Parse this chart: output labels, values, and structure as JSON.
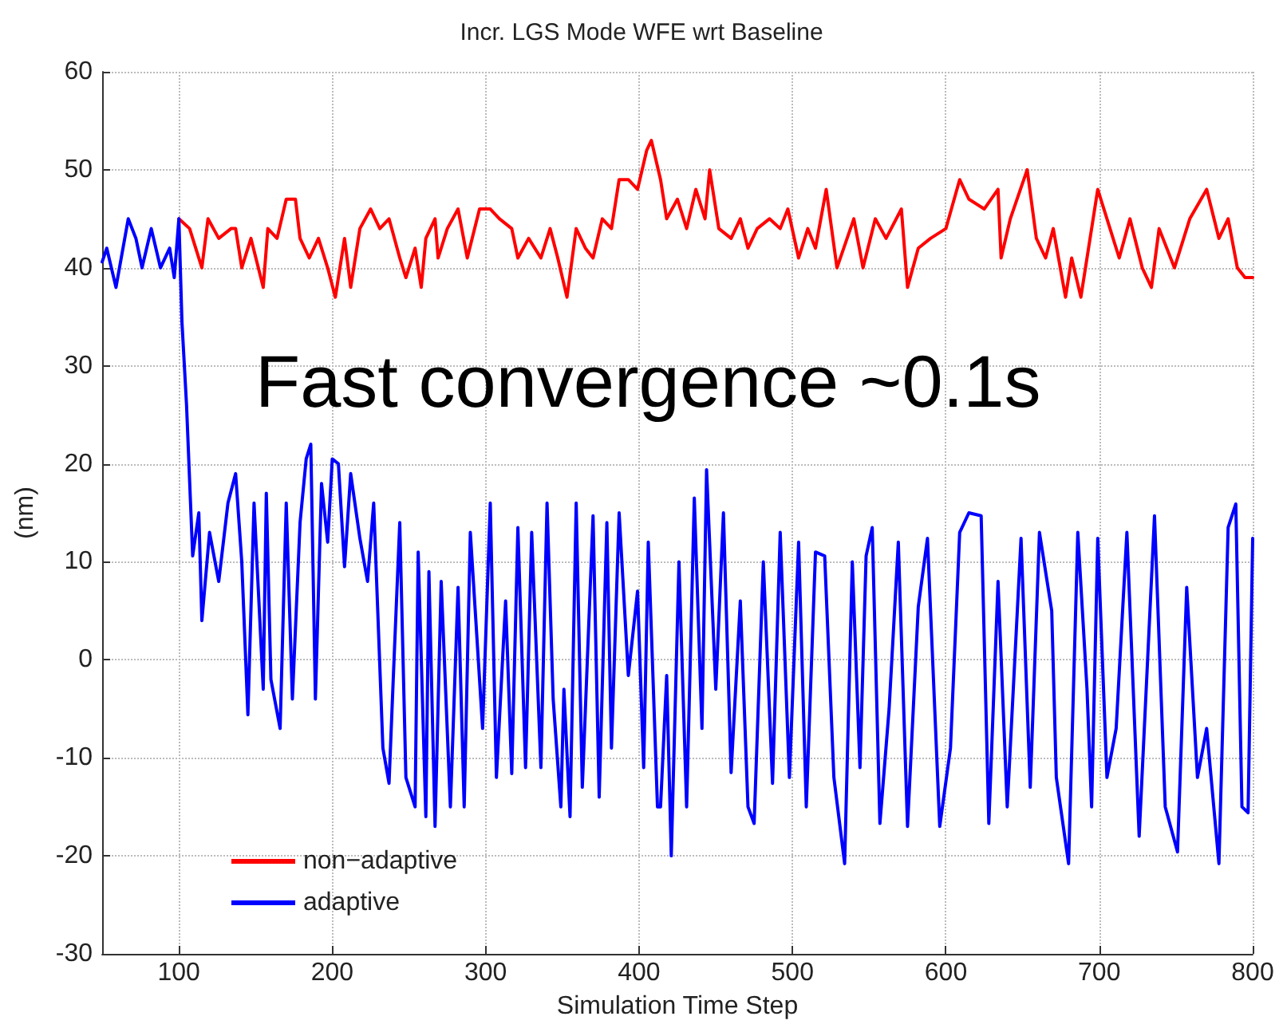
{
  "chart_data": {
    "type": "line",
    "title": "Incr. LGS Mode WFE wrt Baseline",
    "xlabel": "Simulation Time Step",
    "ylabel": "(nm)",
    "annotations": [
      "Fast convergence ~0.1s"
    ],
    "xlim": [
      50,
      800
    ],
    "xticks": [
      100,
      200,
      300,
      400,
      500,
      600,
      700,
      800
    ],
    "ylim": [
      -30,
      60
    ],
    "yticks": [
      -30,
      -20,
      -10,
      0,
      10,
      20,
      30,
      40,
      50,
      60
    ],
    "grid": true,
    "legend": "bottom left",
    "marker": "none",
    "line_style": "solid",
    "series": [
      {
        "name": "non−adaptive",
        "color": "#ff0000",
        "x": [
          100,
          107,
          115,
          119,
          126,
          134,
          137,
          141,
          147,
          155,
          158,
          164,
          170,
          176,
          179,
          185,
          191,
          197,
          202,
          208,
          212,
          218,
          225,
          231,
          237,
          244,
          248,
          254,
          258,
          261,
          267,
          269,
          275,
          282,
          288,
          296,
          303,
          309,
          317,
          321,
          328,
          336,
          342,
          347,
          353,
          359,
          365,
          370,
          376,
          382,
          387,
          393,
          399,
          405,
          408,
          414,
          418,
          425,
          431,
          437,
          443,
          446,
          452,
          460,
          466,
          471,
          477,
          485,
          492,
          497,
          504,
          510,
          515,
          522,
          529,
          540,
          546,
          554,
          561,
          571,
          575,
          582,
          590,
          600,
          609,
          615,
          625,
          634,
          636,
          642,
          653,
          659,
          665,
          670,
          678,
          682,
          688,
          699,
          707,
          713,
          720,
          728,
          734,
          739,
          749,
          759,
          770,
          778,
          784,
          790,
          795,
          800
        ],
        "values": [
          45,
          44,
          40,
          45,
          43,
          44,
          44,
          40,
          43,
          38,
          44,
          43,
          47,
          47,
          43,
          41,
          43,
          40,
          37,
          43,
          38,
          44,
          46,
          44,
          45,
          41,
          39,
          42,
          38,
          43,
          45,
          41,
          44,
          46,
          41,
          46,
          46,
          45,
          44,
          41,
          43,
          41,
          44,
          41,
          37,
          44,
          42,
          41,
          45,
          44,
          49,
          49,
          48,
          52,
          53,
          49,
          45,
          47,
          44,
          48,
          45,
          50,
          44,
          43,
          45,
          42,
          44,
          45,
          44,
          46,
          41,
          44,
          42,
          48,
          40,
          45,
          40,
          45,
          43,
          46,
          38,
          42,
          43,
          44,
          49,
          47,
          46,
          48,
          41,
          45,
          50,
          43,
          41,
          44,
          37,
          41,
          37,
          48,
          44,
          41,
          45,
          40,
          38,
          44,
          40,
          45,
          48,
          43,
          45,
          40,
          39,
          39
        ]
      },
      {
        "name": "adaptive",
        "color": "#0000ff",
        "x": [
          50,
          53,
          59,
          67,
          72,
          76,
          82,
          88,
          94,
          97,
          100,
          102,
          105,
          109,
          113,
          115,
          120,
          126,
          132,
          137,
          141,
          145,
          149,
          155,
          157,
          160,
          166,
          170,
          174,
          179,
          183,
          186,
          189,
          193,
          197,
          200,
          204,
          208,
          212,
          218,
          223,
          227,
          233,
          237,
          240,
          244,
          248,
          254,
          256,
          261,
          263,
          267,
          271,
          277,
          282,
          286,
          290,
          298,
          303,
          307,
          313,
          317,
          321,
          326,
          330,
          336,
          340,
          344,
          349,
          351,
          355,
          359,
          363,
          370,
          374,
          379,
          382,
          387,
          393,
          399,
          403,
          406,
          412,
          414,
          418,
          421,
          426,
          431,
          436,
          441,
          444,
          450,
          455,
          460,
          466,
          471,
          475,
          481,
          487,
          492,
          498,
          504,
          509,
          515,
          521,
          527,
          534,
          539,
          544,
          548,
          552,
          557,
          563,
          569,
          575,
          582,
          588,
          596,
          603,
          609,
          615,
          623,
          628,
          634,
          640,
          649,
          655,
          661,
          669,
          672,
          680,
          686,
          692,
          695,
          699,
          705,
          711,
          718,
          726,
          736,
          743,
          751,
          757,
          764,
          770,
          778,
          784,
          789,
          793,
          797,
          800
        ],
        "values": [
          40.6,
          42,
          38,
          45,
          43,
          40,
          44,
          40,
          42,
          39,
          45,
          34.5,
          26,
          10.6,
          15,
          4,
          13,
          8,
          16,
          19,
          10,
          -5.6,
          16,
          -3,
          17,
          -2,
          -7,
          16,
          -4,
          14,
          20.5,
          22,
          -4,
          18,
          12,
          20.5,
          20,
          9.5,
          19,
          12.4,
          8,
          16,
          -9,
          -12.6,
          -1,
          14,
          -12,
          -15,
          11,
          -16,
          9,
          -17,
          8,
          -15,
          7.4,
          -15,
          13,
          -7,
          16,
          -12,
          6,
          -11.6,
          13.5,
          -11,
          13,
          -11,
          16,
          -4,
          -15,
          -3,
          -16,
          16,
          -13,
          14.7,
          -14,
          14,
          -9,
          15,
          -1.6,
          7,
          -11,
          12,
          -15,
          -15,
          -1.6,
          -20,
          10,
          -15,
          16.5,
          -7,
          19.4,
          -3,
          15,
          -11.5,
          6,
          -15,
          -16.7,
          10,
          -12.6,
          13,
          -12,
          12,
          -15,
          11,
          10.6,
          -12,
          -20.8,
          10,
          -11,
          10.6,
          13.5,
          -16.7,
          -5,
          12,
          -17,
          5.4,
          12.4,
          -17,
          -9,
          13,
          15,
          14.7,
          -16.7,
          8,
          -15,
          12.4,
          -13,
          13,
          5,
          -12,
          -20.8,
          13,
          -3,
          -15,
          12.4,
          -12,
          -7,
          13,
          -18,
          14.7,
          -15,
          -19.6,
          7.4,
          -12,
          -7,
          -20.8,
          13.5,
          15.9,
          -15,
          -15.6,
          12.4
        ]
      }
    ]
  }
}
